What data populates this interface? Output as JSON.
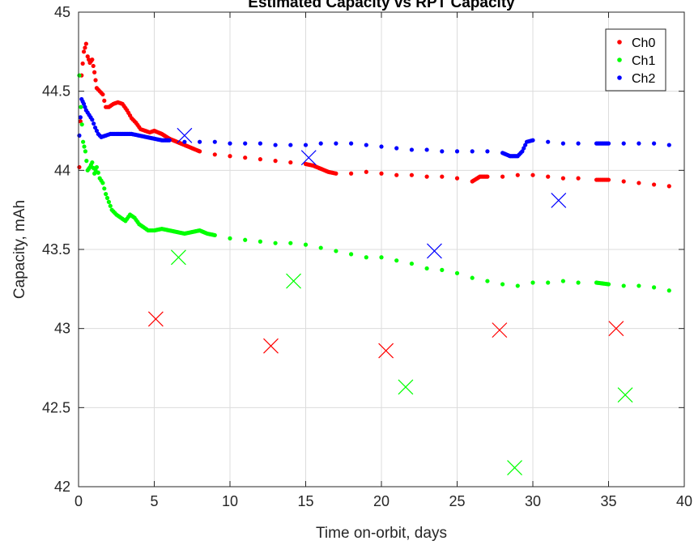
{
  "chart_data": {
    "type": "scatter",
    "title": "Estimated Capacity vs RPT Capacity",
    "xlabel": "Time on-orbit, days",
    "ylabel": "Capacity, mAh",
    "xlim": [
      0,
      40
    ],
    "ylim": [
      42,
      45
    ],
    "xticks": [
      "0",
      "5",
      "10",
      "15",
      "20",
      "25",
      "30",
      "35",
      "40"
    ],
    "yticks": [
      "42",
      "42.5",
      "43",
      "43.5",
      "44",
      "44.5",
      "45"
    ],
    "grid": true,
    "legend_position": "top-right",
    "series": [
      {
        "name": "Ch0",
        "color": "#ff0000",
        "marker": "dot",
        "x": [
          0.05,
          0.2,
          0.35,
          0.5,
          0.6,
          0.75,
          0.9,
          1.05,
          1.2,
          1.4,
          1.6,
          1.8,
          2.0,
          2.3,
          2.6,
          2.9,
          3.2,
          3.5,
          3.8,
          4.1,
          4.4,
          4.7,
          5.0,
          5.5,
          6.0,
          6.5,
          7.0,
          7.5,
          8.0,
          9.0,
          10.0,
          11.0,
          12.0,
          13.0,
          14.0,
          15.0,
          15.5,
          16.0,
          16.5,
          17.0,
          18.0,
          19.0,
          20.0,
          21.0,
          22.0,
          23.0,
          24.0,
          25.0,
          26.0,
          26.5,
          27.0,
          28.0,
          29.0,
          30.0,
          31.0,
          32.0,
          33.0,
          34.2,
          35.0,
          36.0,
          37.0,
          38.0,
          39.0
        ],
        "y": [
          44.02,
          44.6,
          44.75,
          44.8,
          44.72,
          44.68,
          44.7,
          44.62,
          44.52,
          44.5,
          44.48,
          44.4,
          44.4,
          44.42,
          44.43,
          44.42,
          44.38,
          44.33,
          44.3,
          44.26,
          44.25,
          44.24,
          44.25,
          44.23,
          44.2,
          44.18,
          44.16,
          44.14,
          44.12,
          44.1,
          44.09,
          44.08,
          44.07,
          44.06,
          44.05,
          44.04,
          44.03,
          44.01,
          43.99,
          43.98,
          43.98,
          43.99,
          43.98,
          43.97,
          43.97,
          43.96,
          43.96,
          43.95,
          43.93,
          43.96,
          43.96,
          43.96,
          43.97,
          43.97,
          43.96,
          43.95,
          43.95,
          43.94,
          43.94,
          43.93,
          43.92,
          43.91,
          43.9
        ]
      },
      {
        "name": "Ch1",
        "color": "#00ff00",
        "marker": "dot",
        "x": [
          0.05,
          0.15,
          0.3,
          0.45,
          0.6,
          0.75,
          0.9,
          1.05,
          1.2,
          1.4,
          1.6,
          1.8,
          2.0,
          2.2,
          2.5,
          2.8,
          3.1,
          3.4,
          3.7,
          4.0,
          4.3,
          4.6,
          5.0,
          5.5,
          6.0,
          6.5,
          7.0,
          7.5,
          8.0,
          8.5,
          9.0,
          10.0,
          11.0,
          12.0,
          13.0,
          14.0,
          15.0,
          16.0,
          17.0,
          18.0,
          19.0,
          20.0,
          21.0,
          22.0,
          23.0,
          24.0,
          25.0,
          26.0,
          27.0,
          28.0,
          29.0,
          30.0,
          31.0,
          32.0,
          33.0,
          34.2,
          35.0,
          36.0,
          37.0,
          38.0,
          39.0
        ],
        "y": [
          44.6,
          44.4,
          44.18,
          44.12,
          44.0,
          44.02,
          44.05,
          43.98,
          44.02,
          43.95,
          43.92,
          43.85,
          43.8,
          43.75,
          43.72,
          43.7,
          43.68,
          43.72,
          43.7,
          43.66,
          43.64,
          43.62,
          43.62,
          43.63,
          43.62,
          43.61,
          43.6,
          43.61,
          43.62,
          43.6,
          43.59,
          43.57,
          43.56,
          43.55,
          43.54,
          43.54,
          43.53,
          43.51,
          43.49,
          43.47,
          43.45,
          43.45,
          43.43,
          43.41,
          43.38,
          43.37,
          43.35,
          43.32,
          43.3,
          43.28,
          43.27,
          43.29,
          43.29,
          43.3,
          43.29,
          43.29,
          43.28,
          43.27,
          43.27,
          43.26,
          43.24
        ]
      },
      {
        "name": "Ch2",
        "color": "#0000ff",
        "marker": "dot",
        "x": [
          0.05,
          0.2,
          0.35,
          0.5,
          0.7,
          0.9,
          1.1,
          1.3,
          1.5,
          1.8,
          2.1,
          2.5,
          3.0,
          3.5,
          4.0,
          4.5,
          5.0,
          5.5,
          6.0,
          7.0,
          8.0,
          9.0,
          10.0,
          11.0,
          12.0,
          13.0,
          14.0,
          15.0,
          16.0,
          17.0,
          18.0,
          19.0,
          20.0,
          21.0,
          22.0,
          23.0,
          24.0,
          25.0,
          26.0,
          27.0,
          28.0,
          28.5,
          29.0,
          29.3,
          29.6,
          30.0,
          31.0,
          32.0,
          33.0,
          34.2,
          35.0,
          36.0,
          37.0,
          38.0,
          39.0
        ],
        "y": [
          44.22,
          44.45,
          44.42,
          44.38,
          44.35,
          44.32,
          44.27,
          44.23,
          44.21,
          44.22,
          44.23,
          44.23,
          44.23,
          44.23,
          44.22,
          44.21,
          44.2,
          44.19,
          44.19,
          44.18,
          44.18,
          44.18,
          44.17,
          44.17,
          44.17,
          44.16,
          44.16,
          44.16,
          44.17,
          44.17,
          44.17,
          44.16,
          44.15,
          44.14,
          44.13,
          44.13,
          44.12,
          44.12,
          44.12,
          44.12,
          44.11,
          44.09,
          44.09,
          44.12,
          44.18,
          44.19,
          44.18,
          44.17,
          44.17,
          44.17,
          44.17,
          44.17,
          44.17,
          44.17,
          44.16
        ]
      },
      {
        "color": "#ff0000",
        "marker": "x",
        "x": [
          5.1,
          12.7,
          20.3,
          27.8,
          35.5
        ],
        "y": [
          43.06,
          42.89,
          42.86,
          42.99,
          43.0
        ]
      },
      {
        "color": "#00ff00",
        "marker": "x",
        "x": [
          6.6,
          14.2,
          21.6,
          28.8,
          36.1
        ],
        "y": [
          43.45,
          43.3,
          42.63,
          42.12,
          42.58
        ]
      },
      {
        "color": "#0000ff",
        "marker": "x",
        "x": [
          7.0,
          15.2,
          23.5,
          31.7
        ],
        "y": [
          44.22,
          44.08,
          43.49,
          43.81
        ]
      }
    ]
  }
}
